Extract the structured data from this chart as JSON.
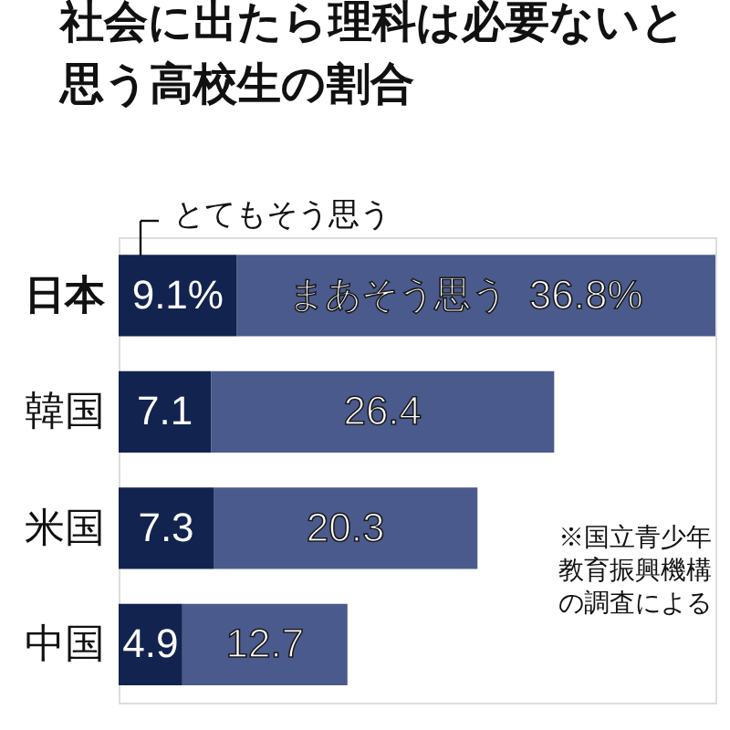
{
  "chart_data": {
    "type": "bar",
    "orientation": "horizontal",
    "stacked": true,
    "title": "社会に出たら理科は必要ないと思う高校生の割合",
    "categories": [
      "日本",
      "韓国",
      "米国",
      "中国"
    ],
    "series": [
      {
        "name": "とてもそう思う",
        "color": "#13234f",
        "values": [
          9.1,
          7.1,
          7.3,
          4.9
        ],
        "value_labels": [
          "9.1%",
          "7.1",
          "7.3",
          "4.9"
        ]
      },
      {
        "name": "まあそう思う",
        "color": "#4b5a8c",
        "values": [
          36.8,
          26.4,
          20.3,
          12.7
        ],
        "value_labels": [
          "36.8%",
          "26.4",
          "20.3",
          "12.7"
        ]
      }
    ],
    "annotations": [
      "※国立青少年教育振興機構の調査による"
    ]
  }
}
